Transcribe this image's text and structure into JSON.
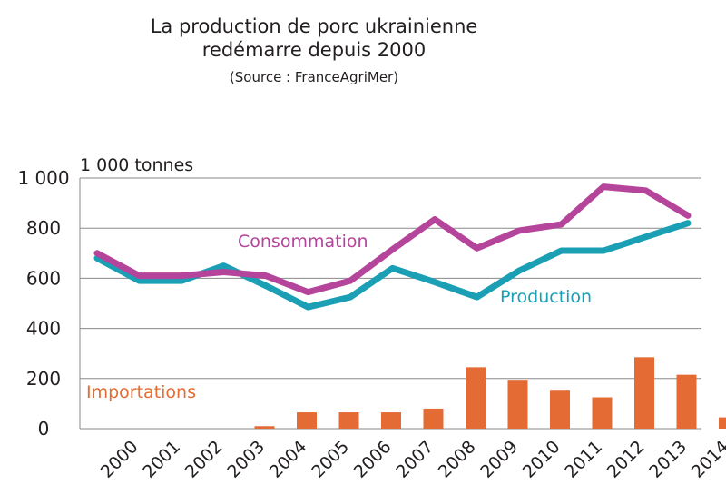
{
  "title_line1": "La production de porc ukrainienne",
  "title_line2": "redémarre depuis 2000",
  "source": "(Source : FranceAgriMer)",
  "chart_data": {
    "type": "line+bar",
    "unit_label": "1 000 tonnes",
    "ylim": [
      0,
      1000
    ],
    "yticks": [
      0,
      200,
      400,
      600,
      800,
      1000
    ],
    "ytick_labels": [
      "0",
      "200",
      "400",
      "600",
      "800",
      "1 000"
    ],
    "grid": "horizontal",
    "categories": [
      "2000",
      "2001",
      "2002",
      "2003",
      "2004",
      "2005",
      "2006",
      "2007",
      "2008",
      "2009",
      "2010",
      "2011",
      "2012",
      "2013",
      "2014"
    ],
    "series": [
      {
        "name": "Consommation",
        "kind": "line",
        "color": "#b5449b",
        "values": [
          700,
          610,
          610,
          625,
          610,
          545,
          590,
          715,
          835,
          720,
          790,
          815,
          965,
          950,
          850
        ]
      },
      {
        "name": "Production",
        "kind": "line",
        "color": "#1b9fb4",
        "values": [
          680,
          590,
          590,
          650,
          570,
          485,
          525,
          640,
          585,
          525,
          630,
          710,
          710,
          765,
          820
        ]
      },
      {
        "name": "Importations",
        "kind": "bar",
        "color": "#e46b33",
        "values": [
          0,
          0,
          0,
          10,
          65,
          65,
          65,
          80,
          245,
          195,
          155,
          125,
          285,
          215,
          45
        ]
      }
    ]
  }
}
